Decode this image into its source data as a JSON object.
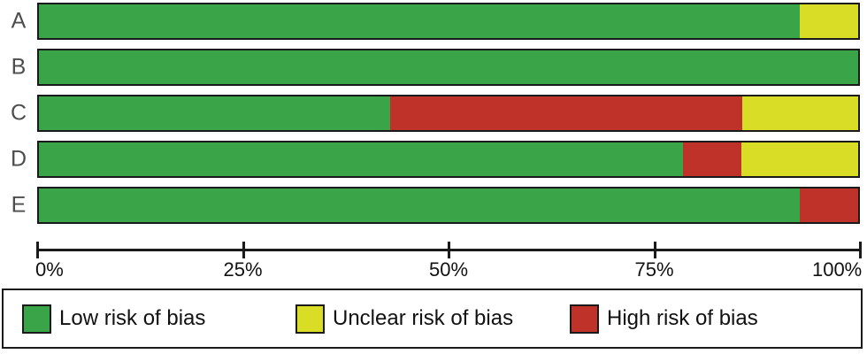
{
  "chart_data": {
    "type": "bar",
    "variant": "horizontal-stacked",
    "title": "",
    "xlabel": "",
    "ylabel": "",
    "xlim": [
      0,
      100
    ],
    "grid": false,
    "categories": [
      "A",
      "B",
      "C",
      "D",
      "E"
    ],
    "series": [
      {
        "name": "Low risk of bias",
        "color": "#3aa548",
        "values": [
          92.9,
          100.0,
          42.9,
          78.6,
          92.9
        ]
      },
      {
        "name": "High risk of bias",
        "color": "#bf3229",
        "values": [
          0.0,
          0.0,
          42.9,
          7.1,
          7.1
        ]
      },
      {
        "name": "Unclear risk of bias",
        "color": "#dadd25",
        "values": [
          7.1,
          0.0,
          14.3,
          14.3,
          0.0
        ]
      }
    ],
    "axis_ticks": [
      {
        "value": 0,
        "label": "0%"
      },
      {
        "value": 25,
        "label": "25%"
      },
      {
        "value": 50,
        "label": "50%"
      },
      {
        "value": 75,
        "label": "75%"
      },
      {
        "value": 100,
        "label": "100%"
      }
    ],
    "legend": {
      "position": "bottom",
      "items": [
        {
          "label": "Low risk of bias",
          "color": "#3aa548"
        },
        {
          "label": "Unclear risk of bias",
          "color": "#dadd25"
        },
        {
          "label": "High risk of bias",
          "color": "#bf3229"
        }
      ]
    }
  },
  "colors": {
    "bar_border": "#1a1a1a",
    "axis": "#1a1a1a",
    "row_label_text": "#4d4d4d",
    "background": "#ffffff"
  }
}
